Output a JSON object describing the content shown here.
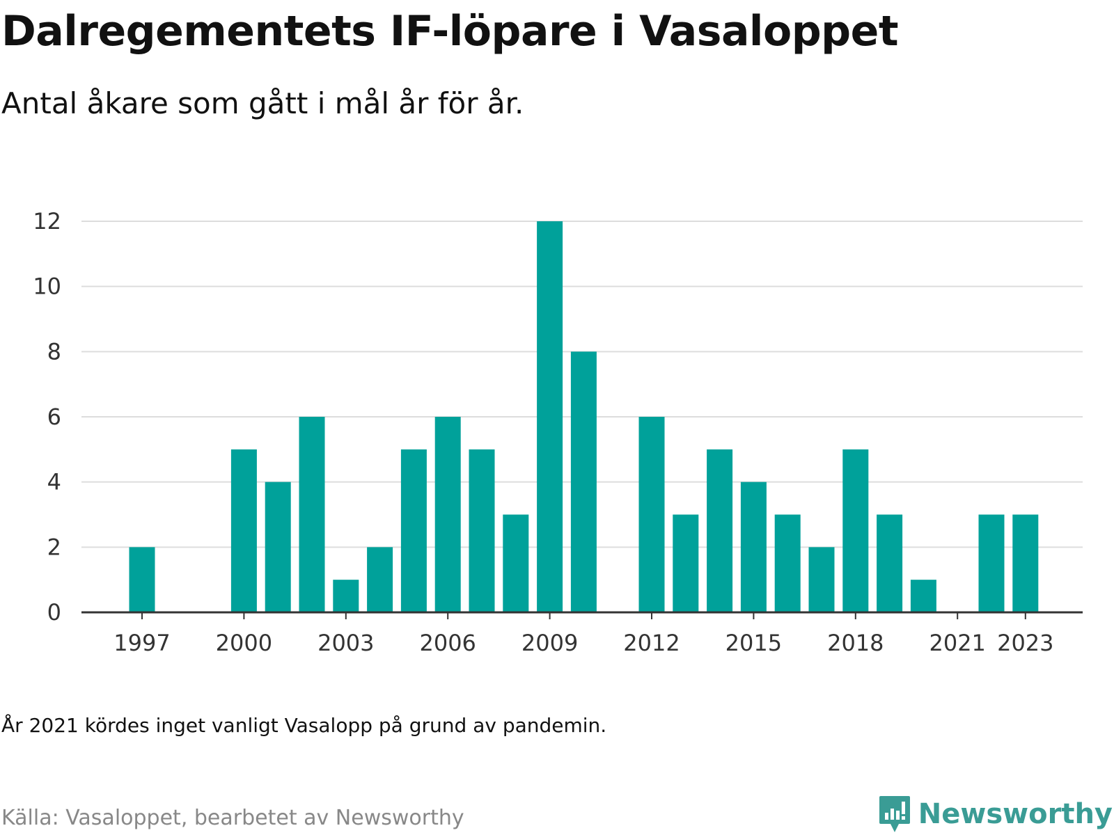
{
  "title": "Dalregementets IF-löpare i Vasaloppet",
  "subtitle": "Antal åkare som gått i mål år för år.",
  "note": "År 2021 kördes inget vanligt Vasalopp på grund av pandemin.",
  "source": "Källa: Vasaloppet, bearbetet av Newsworthy",
  "brand": {
    "name": "Newsworthy",
    "logo_icon": "newsworthy-logo-icon",
    "color": "#3a9c95"
  },
  "colors": {
    "bar": "#00a19a",
    "grid": "#dddddd",
    "axis": "#333333",
    "tick_label": "#333333"
  },
  "chart_data": {
    "type": "bar",
    "title": "Dalregementets IF-löpare i Vasaloppet",
    "subtitle": "Antal åkare som gått i mål år för år.",
    "xlabel": "",
    "ylabel": "",
    "x": [
      1997,
      1998,
      1999,
      2000,
      2001,
      2002,
      2003,
      2004,
      2005,
      2006,
      2007,
      2008,
      2009,
      2010,
      2011,
      2012,
      2013,
      2014,
      2015,
      2016,
      2017,
      2018,
      2019,
      2020,
      2021,
      2022,
      2023
    ],
    "values": [
      2,
      0,
      0,
      5,
      4,
      6,
      1,
      2,
      5,
      6,
      5,
      3,
      12,
      8,
      0,
      6,
      3,
      5,
      4,
      3,
      2,
      5,
      3,
      1,
      0,
      3,
      3
    ],
    "x_ticks": [
      "1997",
      "2000",
      "2003",
      "2006",
      "2009",
      "2012",
      "2015",
      "2018",
      "2021",
      "2023"
    ],
    "y_ticks": [
      "0",
      "2",
      "4",
      "6",
      "8",
      "10",
      "12"
    ],
    "ylim": [
      0,
      12
    ],
    "grid": true,
    "legend": "none"
  }
}
